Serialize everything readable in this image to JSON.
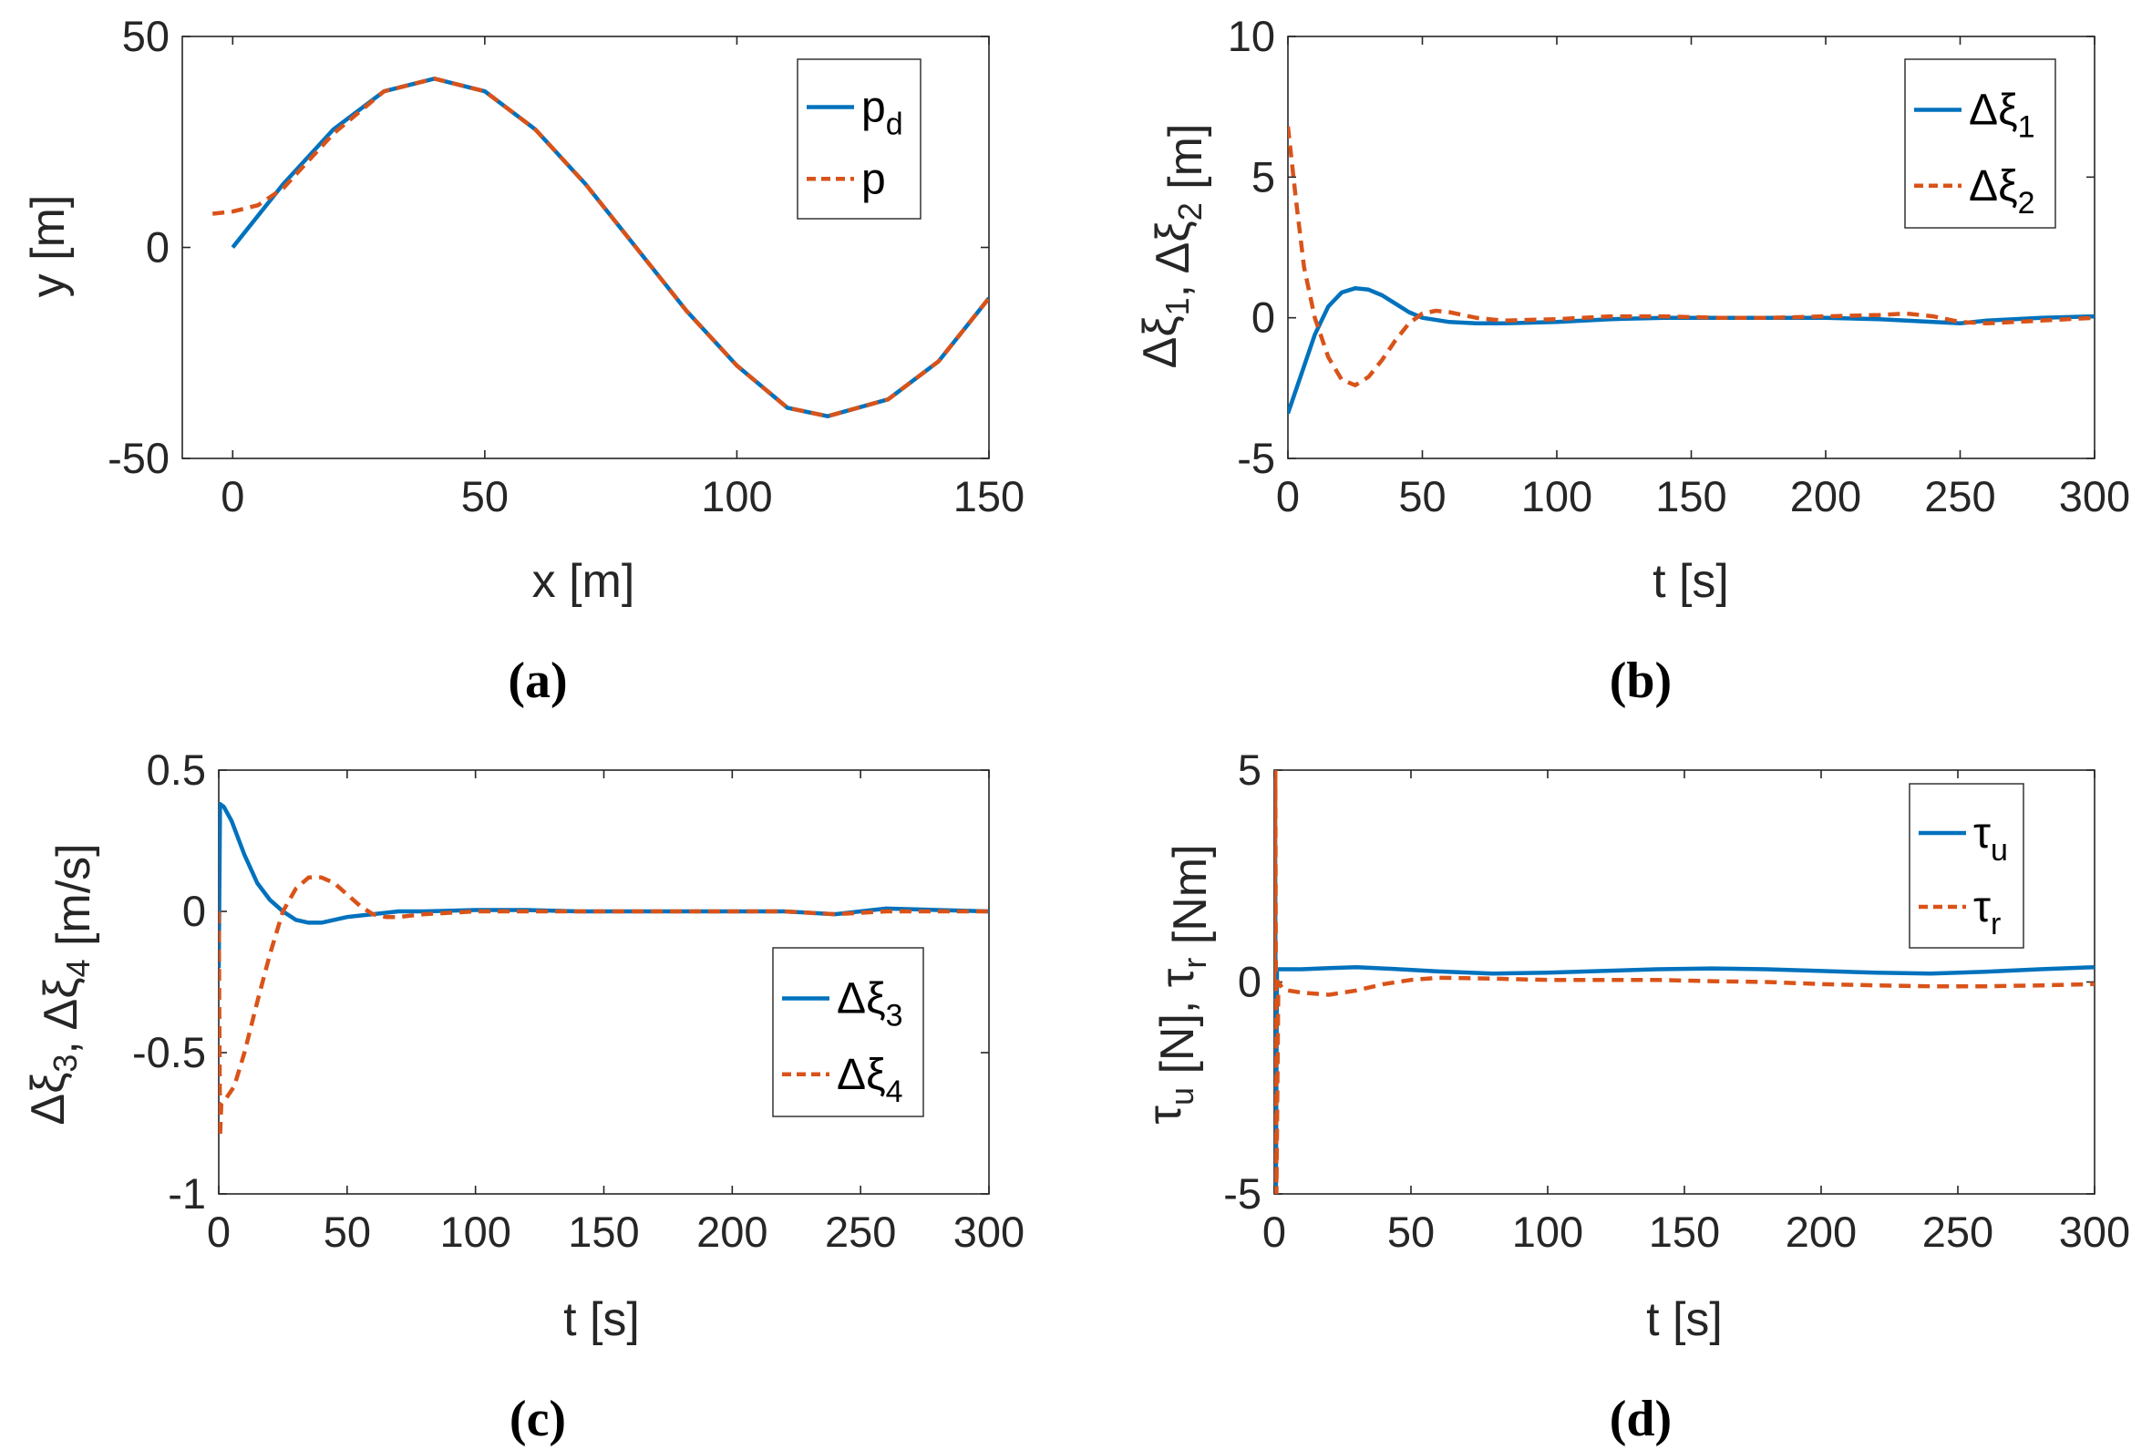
{
  "chart_data": [
    {
      "panel": "(a)",
      "type": "line",
      "xlabel": "x [m]",
      "ylabel": "y [m]",
      "xlim": [
        -10,
        150
      ],
      "ylim": [
        -50,
        50
      ],
      "xticks": [
        0,
        50,
        100,
        150
      ],
      "yticks": [
        -50,
        0,
        50
      ],
      "xtick_labels": [
        "0",
        "50",
        "100",
        "150"
      ],
      "ytick_labels": [
        "-50",
        "0",
        "50"
      ],
      "grid": false,
      "legend_position": "top-right",
      "series": [
        {
          "name": "p_d",
          "color": "#0072BD",
          "style": "solid",
          "x": [
            0,
            10,
            20,
            30,
            40,
            50,
            60,
            70,
            80,
            90,
            100,
            110,
            118,
            130,
            140,
            150
          ],
          "y": [
            0,
            15,
            28,
            37,
            40,
            37,
            28,
            15,
            0,
            -15,
            -28,
            -38,
            -40,
            -36,
            -27,
            -12
          ]
        },
        {
          "name": "p",
          "color": "#D95319",
          "style": "dashed",
          "x": [
            -4,
            0,
            5,
            10,
            20,
            30,
            40,
            50,
            60,
            70,
            80,
            90,
            100,
            110,
            118,
            130,
            140,
            150
          ],
          "y": [
            8,
            8.5,
            10,
            14,
            27,
            37,
            40,
            37,
            28,
            15,
            0,
            -15,
            -28,
            -38,
            -40,
            -36,
            -27,
            -12
          ]
        }
      ]
    },
    {
      "panel": "(b)",
      "type": "line",
      "xlabel": "t [s]",
      "ylabel": "Δξ1, Δξ2 [m]",
      "xlim": [
        0,
        300
      ],
      "ylim": [
        -5,
        10
      ],
      "xticks": [
        0,
        50,
        100,
        150,
        200,
        250,
        300
      ],
      "yticks": [
        -5,
        0,
        5,
        10
      ],
      "xtick_labels": [
        "0",
        "50",
        "100",
        "150",
        "200",
        "250",
        "300"
      ],
      "ytick_labels": [
        "-5",
        "0",
        "5",
        "10"
      ],
      "grid": false,
      "legend_position": "top-right",
      "series": [
        {
          "name": "Δξ1",
          "color": "#0072BD",
          "style": "solid",
          "x": [
            0,
            5,
            10,
            15,
            20,
            25,
            30,
            35,
            40,
            45,
            50,
            60,
            70,
            80,
            100,
            120,
            140,
            160,
            180,
            200,
            220,
            240,
            250,
            260,
            280,
            300
          ],
          "y": [
            -3.4,
            -2.0,
            -0.6,
            0.4,
            0.9,
            1.05,
            1.0,
            0.8,
            0.5,
            0.2,
            0.0,
            -0.15,
            -0.2,
            -0.2,
            -0.15,
            -0.05,
            0.0,
            0.0,
            0.0,
            0.0,
            -0.05,
            -0.15,
            -0.2,
            -0.1,
            0.0,
            0.05
          ]
        },
        {
          "name": "Δξ2",
          "color": "#D95319",
          "style": "dashed",
          "x": [
            0,
            3,
            6,
            10,
            15,
            20,
            25,
            30,
            35,
            40,
            45,
            50,
            55,
            60,
            70,
            80,
            100,
            120,
            140,
            160,
            180,
            200,
            220,
            230,
            240,
            250,
            260,
            280,
            300
          ],
          "y": [
            6.8,
            4.2,
            1.8,
            0.0,
            -1.4,
            -2.2,
            -2.4,
            -2.1,
            -1.5,
            -0.8,
            -0.2,
            0.15,
            0.25,
            0.2,
            0.0,
            -0.1,
            -0.05,
            0.05,
            0.05,
            0.0,
            0.0,
            0.05,
            0.1,
            0.15,
            0.05,
            -0.15,
            -0.2,
            -0.1,
            0.0
          ]
        }
      ]
    },
    {
      "panel": "(c)",
      "type": "line",
      "xlabel": "t [s]",
      "ylabel": "Δξ3, Δξ4 [m/s]",
      "xlim": [
        0,
        300
      ],
      "ylim": [
        -1,
        0.5
      ],
      "xticks": [
        0,
        50,
        100,
        150,
        200,
        250,
        300
      ],
      "yticks": [
        -1,
        -0.5,
        0,
        0.5
      ],
      "xtick_labels": [
        "0",
        "50",
        "100",
        "150",
        "200",
        "250",
        "300"
      ],
      "ytick_labels": [
        "-1",
        "-0.5",
        "0",
        "0.5"
      ],
      "grid": false,
      "legend_position": "bottom-right",
      "series": [
        {
          "name": "Δξ3",
          "color": "#0072BD",
          "style": "solid",
          "x": [
            0,
            0.5,
            2,
            5,
            10,
            15,
            20,
            25,
            30,
            35,
            40,
            45,
            50,
            60,
            70,
            80,
            100,
            120,
            140,
            160,
            180,
            200,
            220,
            240,
            260,
            280,
            300
          ],
          "y": [
            -0.2,
            0.38,
            0.37,
            0.32,
            0.2,
            0.1,
            0.04,
            0.0,
            -0.03,
            -0.04,
            -0.04,
            -0.03,
            -0.02,
            -0.01,
            0.0,
            0.0,
            0.005,
            0.005,
            0.0,
            0.0,
            0.0,
            0.0,
            0.0,
            -0.01,
            0.01,
            0.005,
            0.0
          ]
        },
        {
          "name": "Δξ4",
          "color": "#D95319",
          "style": "dashed",
          "x": [
            0,
            0.5,
            1,
            3,
            6,
            10,
            15,
            20,
            25,
            30,
            35,
            40,
            45,
            50,
            55,
            60,
            65,
            70,
            80,
            100,
            120,
            140,
            160,
            180,
            200,
            220,
            240,
            260,
            280,
            300
          ],
          "y": [
            0.0,
            -0.8,
            -0.68,
            -0.66,
            -0.62,
            -0.5,
            -0.32,
            -0.15,
            0.0,
            0.08,
            0.12,
            0.12,
            0.1,
            0.06,
            0.02,
            -0.01,
            -0.02,
            -0.02,
            -0.01,
            0.0,
            0.0,
            0.0,
            0.0,
            0.0,
            0.0,
            0.0,
            -0.01,
            0.0,
            0.0,
            0.0
          ]
        }
      ]
    },
    {
      "panel": "(d)",
      "type": "line",
      "xlabel": "t [s]",
      "ylabel": "τu [N], τr [Nm]",
      "xlim": [
        0,
        300
      ],
      "ylim": [
        -5,
        5
      ],
      "xticks": [
        0,
        50,
        100,
        150,
        200,
        250,
        300
      ],
      "yticks": [
        -5,
        0,
        5
      ],
      "xtick_labels": [
        "0",
        "50",
        "100",
        "150",
        "200",
        "250",
        "300"
      ],
      "ytick_labels": [
        "-5",
        "0",
        "5"
      ],
      "grid": false,
      "legend_position": "top-right",
      "series": [
        {
          "name": "τu",
          "color": "#0072BD",
          "style": "solid",
          "x": [
            0,
            0.3,
            0.6,
            1,
            2,
            10,
            20,
            30,
            40,
            60,
            80,
            100,
            120,
            140,
            160,
            180,
            200,
            220,
            240,
            260,
            280,
            300
          ],
          "y": [
            0,
            5,
            -5,
            0.3,
            0.3,
            0.3,
            0.33,
            0.35,
            0.32,
            0.25,
            0.2,
            0.22,
            0.26,
            0.3,
            0.32,
            0.3,
            0.26,
            0.22,
            0.2,
            0.24,
            0.3,
            0.35
          ]
        },
        {
          "name": "τr",
          "color": "#D95319",
          "style": "dashed",
          "x": [
            0,
            0.4,
            0.8,
            1.5,
            3,
            5,
            10,
            20,
            30,
            40,
            50,
            60,
            80,
            100,
            120,
            140,
            160,
            180,
            200,
            220,
            240,
            260,
            280,
            300
          ],
          "y": [
            0,
            5,
            -5,
            0.0,
            -0.15,
            -0.2,
            -0.25,
            -0.3,
            -0.2,
            -0.05,
            0.05,
            0.1,
            0.08,
            0.05,
            0.05,
            0.05,
            0.02,
            0.0,
            -0.05,
            -0.08,
            -0.1,
            -0.1,
            -0.08,
            -0.05
          ]
        }
      ]
    }
  ],
  "captions": [
    "(a)",
    "(b)",
    "(c)",
    "(d)"
  ]
}
